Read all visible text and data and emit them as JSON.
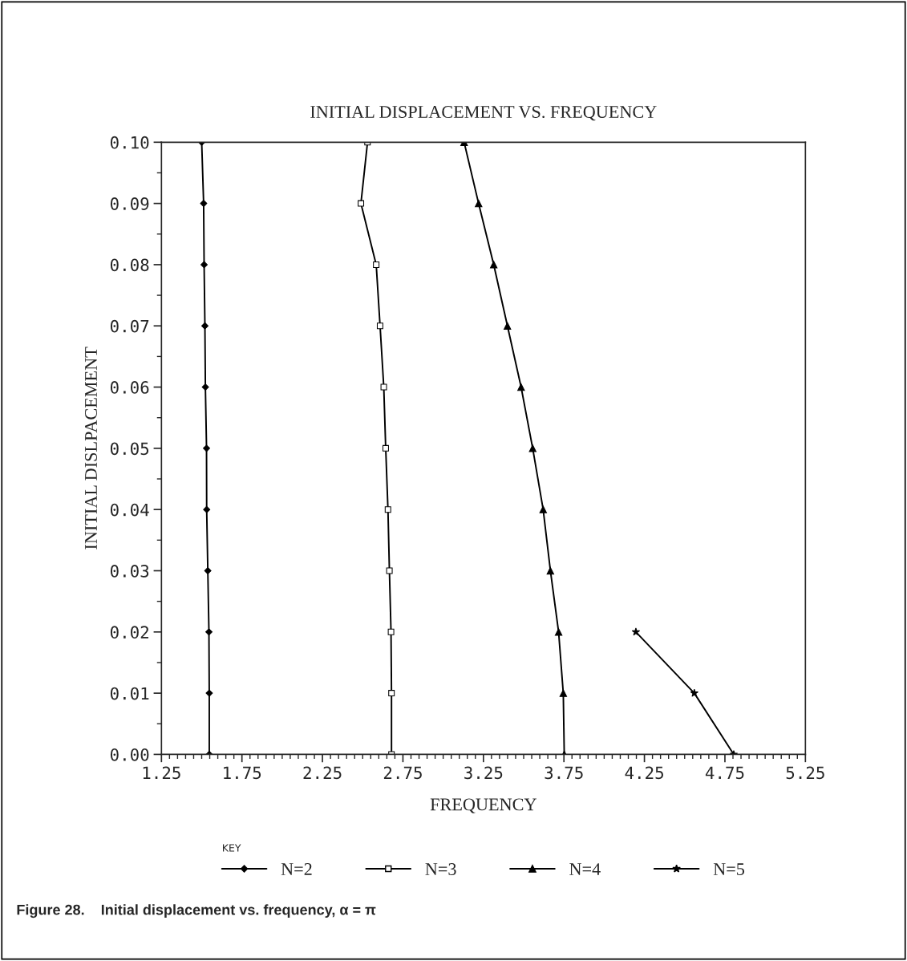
{
  "chart_data": {
    "type": "line",
    "title": "INITIAL DISPLACEMENT VS. FREQUENCY",
    "xlabel": "FREQUENCY",
    "ylabel": "INITIAL DISLPACEMENT",
    "legend_title": "KEY",
    "legend": "bottom",
    "xlim": [
      1.25,
      5.25
    ],
    "xticks": [
      {
        "value": 1.25,
        "label": "1.25"
      },
      {
        "value": 1.75,
        "label": "1.75"
      },
      {
        "value": 2.25,
        "label": "2.25"
      },
      {
        "value": 2.75,
        "label": "2.75"
      },
      {
        "value": 3.25,
        "label": "3.25"
      },
      {
        "value": 3.75,
        "label": "3.75"
      },
      {
        "value": 4.25,
        "label": "4.25"
      },
      {
        "value": 4.75,
        "label": "4.75"
      },
      {
        "value": 5.25,
        "label": "5.25"
      }
    ],
    "ylim": [
      0.0,
      0.1
    ],
    "yticks": [
      {
        "value": 0.0,
        "label": "0.00"
      },
      {
        "value": 0.01,
        "label": "0.01"
      },
      {
        "value": 0.02,
        "label": "0.02"
      },
      {
        "value": 0.03,
        "label": "0.03"
      },
      {
        "value": 0.04,
        "label": "0.04"
      },
      {
        "value": 0.05,
        "label": "0.05"
      },
      {
        "value": 0.06,
        "label": "0.06"
      },
      {
        "value": 0.07,
        "label": "0.07"
      },
      {
        "value": 0.08,
        "label": "0.08"
      },
      {
        "value": 0.09,
        "label": "0.09"
      },
      {
        "value": 0.1,
        "label": "0.10"
      }
    ],
    "grid": false,
    "line_style": "solid",
    "series": [
      {
        "name": "N=2",
        "color": "#000000",
        "marker": "diamond",
        "x": [
          1.547,
          1.547,
          1.545,
          1.538,
          1.531,
          1.53,
          1.523,
          1.52,
          1.515,
          1.512,
          1.5
        ],
        "values": [
          0.0,
          0.01,
          0.02,
          0.03,
          0.04,
          0.05,
          0.06,
          0.07,
          0.08,
          0.09,
          0.1
        ]
      },
      {
        "name": "N=3",
        "color": "#000000",
        "marker": "square",
        "x": [
          2.679,
          2.679,
          2.676,
          2.666,
          2.657,
          2.643,
          2.631,
          2.608,
          2.584,
          2.489,
          2.53
        ],
        "values": [
          0.0,
          0.01,
          0.02,
          0.03,
          0.04,
          0.05,
          0.06,
          0.07,
          0.08,
          0.09,
          0.1
        ]
      },
      {
        "name": "N=4",
        "color": "#000000",
        "marker": "triangle",
        "x": [
          3.752,
          3.746,
          3.717,
          3.666,
          3.621,
          3.556,
          3.484,
          3.399,
          3.314,
          3.22,
          3.13
        ],
        "values": [
          0.0,
          0.01,
          0.02,
          0.03,
          0.04,
          0.05,
          0.06,
          0.07,
          0.08,
          0.09,
          0.1
        ]
      },
      {
        "name": "N=5",
        "color": "#000000",
        "marker": "star",
        "x": [
          4.805,
          4.56,
          4.197
        ],
        "values": [
          0.0,
          0.01,
          0.02
        ]
      }
    ],
    "annotations": [
      "Figure 28.    Initial displacement vs. frequency, α = π"
    ]
  }
}
